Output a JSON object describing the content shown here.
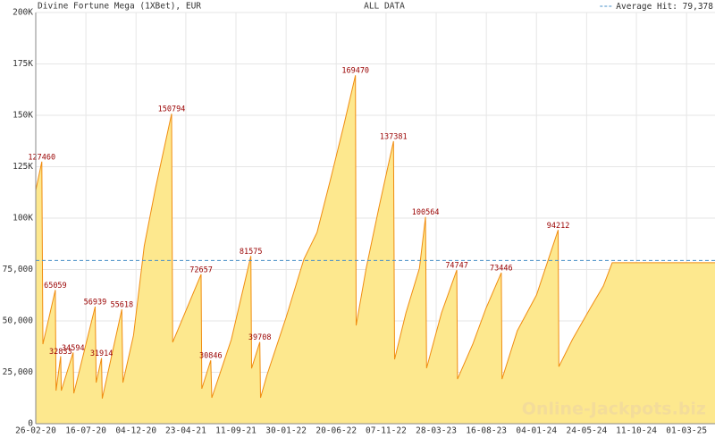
{
  "chart_data": {
    "type": "area",
    "title": "Divine Fortune Mega (1XBet), EUR",
    "subtitle": "ALL DATA",
    "watermark": "Online-Jackpots.biz",
    "fill_color": "#fde88e",
    "line_color": "#f08c10",
    "label_color": "#990000",
    "grid": true,
    "reference_line": {
      "name": "Average Hit:",
      "value": 79378,
      "value_label": "79,378",
      "color": "#4a90c8",
      "legend": "upper right"
    },
    "xlim": [
      "2020-02-26",
      "2025-05-20"
    ],
    "xticks": [
      {
        "value": "2020-02-26",
        "label": "26-02-20"
      },
      {
        "value": "2020-07-16",
        "label": "16-07-20"
      },
      {
        "value": "2020-12-04",
        "label": "04-12-20"
      },
      {
        "value": "2021-04-23",
        "label": "23-04-21"
      },
      {
        "value": "2021-09-11",
        "label": "11-09-21"
      },
      {
        "value": "2022-01-30",
        "label": "30-01-22"
      },
      {
        "value": "2022-06-20",
        "label": "20-06-22"
      },
      {
        "value": "2022-11-07",
        "label": "07-11-22"
      },
      {
        "value": "2023-03-28",
        "label": "28-03-23"
      },
      {
        "value": "2023-08-16",
        "label": "16-08-23"
      },
      {
        "value": "2024-01-04",
        "label": "04-01-24"
      },
      {
        "value": "2024-05-24",
        "label": "24-05-24"
      },
      {
        "value": "2024-10-11",
        "label": "11-10-24"
      },
      {
        "value": "2025-03-01",
        "label": "01-03-25"
      }
    ],
    "ylim": [
      0,
      200000
    ],
    "yticks": [
      0,
      {
        "value": 25000,
        "label": "25,000"
      },
      {
        "value": 50000,
        "label": "50,000"
      },
      {
        "value": 75000,
        "label": "75,000"
      },
      {
        "value": 100000,
        "label": "100K"
      },
      {
        "value": 125000,
        "label": "125K"
      },
      {
        "value": 150000,
        "label": "150K"
      },
      {
        "value": 175000,
        "label": "175K"
      },
      {
        "value": 200000,
        "label": "200K"
      }
    ],
    "x": [
      "2020-02-26",
      "2020-03-14",
      "2020-03-17",
      "2020-04-21",
      "2020-04-23",
      "2020-05-06",
      "2020-05-08",
      "2020-06-10",
      "2020-06-12",
      "2020-08-11",
      "2020-08-14",
      "2020-08-29",
      "2020-08-31",
      "2020-10-25",
      "2020-10-28",
      "2020-11-27",
      "2020-12-27",
      "2021-01-28",
      "2021-03-14",
      "2021-03-17",
      "2021-06-05",
      "2021-06-07",
      "2021-07-02",
      "2021-07-05",
      "2021-08-29",
      "2021-10-23",
      "2021-10-25",
      "2021-11-17",
      "2021-11-19",
      "2021-12-07",
      "2022-01-30",
      "2022-03-21",
      "2022-04-27",
      "2022-06-04",
      "2022-07-11",
      "2022-08-13",
      "2022-08-15",
      "2022-09-12",
      "2022-10-19",
      "2022-11-28",
      "2022-12-01",
      "2023-01-02",
      "2023-02-09",
      "2023-02-26",
      "2023-03-01",
      "2023-04-12",
      "2023-05-25",
      "2023-05-27",
      "2023-07-09",
      "2023-08-15",
      "2023-09-27",
      "2023-09-29",
      "2023-11-11",
      "2024-01-04",
      "2024-03-05",
      "2024-03-07",
      "2024-04-14",
      "2024-06-03",
      "2024-07-10",
      "2024-08-04",
      "2025-05-20"
    ],
    "values": [
      113500,
      127460,
      38700,
      65059,
      16100,
      32833,
      16100,
      34594,
      14800,
      56939,
      20000,
      31914,
      12200,
      55618,
      20000,
      43000,
      86500,
      114800,
      150794,
      39600,
      72657,
      17000,
      30846,
      12600,
      40900,
      81575,
      26900,
      39708,
      12600,
      23500,
      51700,
      80000,
      93000,
      119000,
      145000,
      169470,
      47800,
      75600,
      106000,
      137381,
      31300,
      53900,
      75600,
      100564,
      27000,
      53900,
      74747,
      21700,
      38700,
      56100,
      73446,
      21700,
      45200,
      62600,
      94212,
      27800,
      40900,
      56100,
      67000,
      78300,
      78300
    ],
    "value_labels": [
      null,
      "127460",
      null,
      "65059",
      null,
      "32833",
      null,
      "34594",
      null,
      "56939",
      null,
      "31914",
      null,
      "55618",
      null,
      null,
      null,
      null,
      "150794",
      null,
      "72657",
      null,
      "30846",
      null,
      null,
      "81575",
      null,
      "39708",
      null,
      null,
      null,
      null,
      null,
      null,
      null,
      "169470",
      null,
      null,
      null,
      "137381",
      null,
      null,
      null,
      "100564",
      null,
      null,
      "74747",
      null,
      null,
      null,
      "73446",
      null,
      null,
      null,
      "94212",
      null,
      null,
      null,
      null,
      null,
      null
    ]
  }
}
